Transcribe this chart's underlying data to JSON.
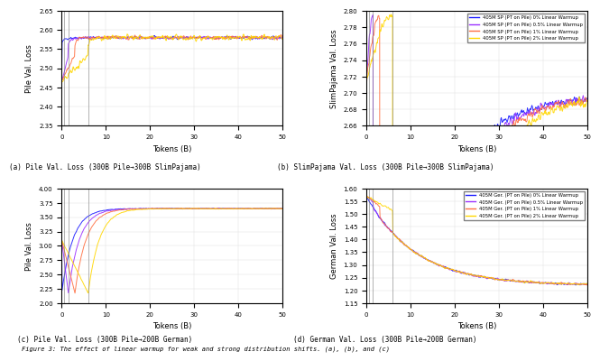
{
  "colors": {
    "0pct": "#1a1aff",
    "0p5pct": "#9b30ff",
    "1pct": "#ff7043",
    "2pct": "#ffd700"
  },
  "legend_labels_sp": [
    "405M SP (PT on Pile) 0% Linear Warmup",
    "405M SP (PT on Pile) 0.5% Linear Warmup",
    "405M SP (PT on Pile) 1% Linear Warmup",
    "405M SP (PT on Pile) 2% Linear Warmup"
  ],
  "legend_labels_ger": [
    "405M Ger. (PT on Pile) 0% Linear Warmup",
    "405M Ger. (PT on Pile) 0.5% Linear Warmup",
    "405M Ger. (PT on Pile) 1% Linear Warmup",
    "405M Ger. (PT on Pile) 2% Linear Warmup"
  ],
  "subplot_titles": [
    "(a) Pile Val. Loss (300B Pile→300B SlimPajama)",
    "(b) SlimPajama Val. Loss (300B Pile→300B SlimPajama)",
    "(c) Pile Val. Loss (300B Pile→200B German)",
    "(d) German Val. Loss (300B Pile→200B German)"
  ],
  "ylabel_a": "Pile Val. Loss",
  "ylabel_b": "SlimPajama Val. Loss",
  "ylabel_c": "Pile Val. Loss",
  "ylabel_d": "German Val. Loss",
  "xlabel": "Tokens (B)",
  "ylim_a": [
    2.35,
    2.65
  ],
  "ylim_b": [
    2.66,
    2.8
  ],
  "ylim_c": [
    2.0,
    4.0
  ],
  "ylim_d": [
    1.15,
    1.6
  ],
  "xlim": [
    0,
    50
  ],
  "vlines": [
    0.5,
    1.5,
    6.0
  ],
  "fig_caption": "Figure 3: The effect of linear warmup for weak and strong distribution shifts. (a), (b), and (c)"
}
